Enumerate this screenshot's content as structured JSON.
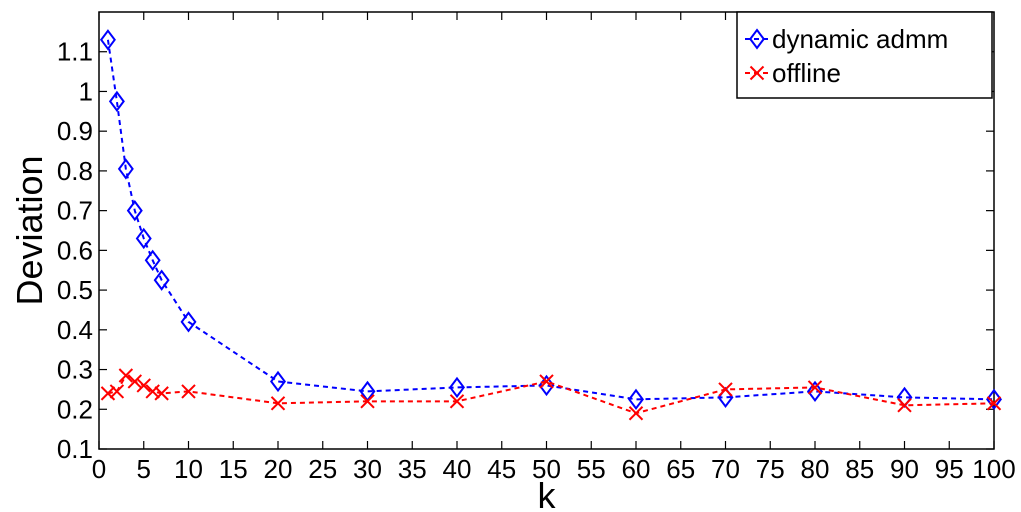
{
  "chart_data": {
    "type": "line",
    "xlabel": "k",
    "ylabel": "Deviation",
    "xlim": [
      0,
      100
    ],
    "ylim": [
      0.1,
      1.2
    ],
    "x_ticks": [
      0,
      5,
      10,
      15,
      20,
      25,
      30,
      35,
      40,
      45,
      50,
      55,
      60,
      65,
      70,
      75,
      80,
      85,
      90,
      95,
      100
    ],
    "y_ticks": [
      0.1,
      0.2,
      0.3,
      0.4,
      0.5,
      0.6,
      0.7,
      0.8,
      0.9,
      1,
      1.1
    ],
    "grid": false,
    "legend_position": "top-right",
    "x": [
      1,
      2,
      3,
      4,
      5,
      6,
      7,
      10,
      20,
      30,
      40,
      50,
      60,
      70,
      80,
      90,
      100
    ],
    "series": [
      {
        "name": "dynamic admm",
        "color": "#0000ff",
        "marker": "diamond",
        "line_style": "dashed",
        "values": [
          1.13,
          0.975,
          0.805,
          0.7,
          0.63,
          0.575,
          0.525,
          0.42,
          0.27,
          0.245,
          0.255,
          0.26,
          0.225,
          0.23,
          0.245,
          0.23,
          0.225
        ]
      },
      {
        "name": "offline",
        "color": "#ff0000",
        "marker": "x",
        "line_style": "dashed",
        "values": [
          0.24,
          0.245,
          0.285,
          0.27,
          0.26,
          0.245,
          0.24,
          0.245,
          0.215,
          0.22,
          0.22,
          0.27,
          0.19,
          0.25,
          0.255,
          0.21,
          0.215
        ]
      }
    ]
  }
}
